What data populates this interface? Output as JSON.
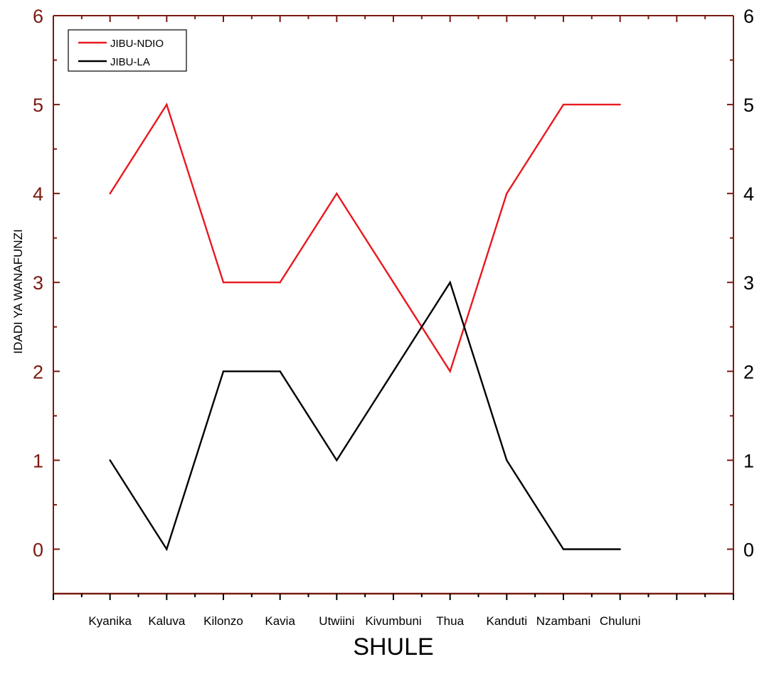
{
  "chart_data": {
    "type": "line",
    "categories": [
      "Kyanika",
      "Kaluva",
      "Kilonzo",
      "Kavia",
      "Utwiini",
      "Kivumbuni",
      "Thua",
      "Kanduti",
      "Nzambani",
      "Chuluni"
    ],
    "series": [
      {
        "name": "JIBU-NDIO",
        "color": "#e8191f",
        "values": [
          4,
          5,
          3,
          3,
          4,
          3,
          2,
          4,
          5,
          5
        ]
      },
      {
        "name": "JIBU-LA",
        "color": "#000000",
        "values": [
          1,
          0,
          2,
          2,
          1,
          2,
          3,
          1,
          0,
          0
        ]
      }
    ],
    "xlabel": "SHULE",
    "ylabel": "IDADI YA WANAFUNZI",
    "ylim": [
      -0.5,
      6
    ],
    "x_range": [
      -1,
      11
    ],
    "yticks": [
      "0",
      "1",
      "2",
      "3",
      "4",
      "5",
      "6"
    ],
    "legend_position": "top-left",
    "grid": false,
    "axis_color": "#7a1a10"
  }
}
